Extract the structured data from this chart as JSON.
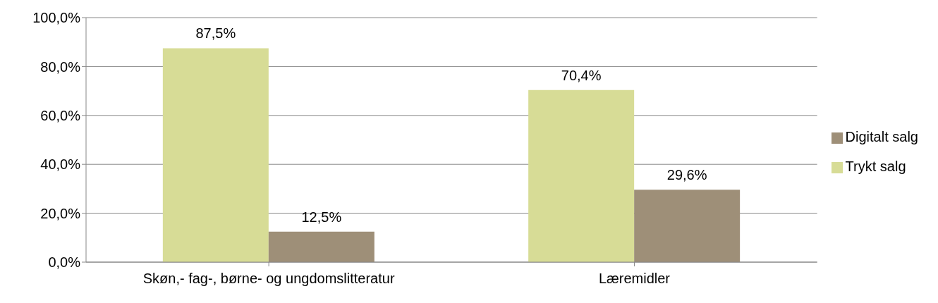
{
  "chart_data": {
    "type": "bar",
    "categories": [
      "Skøn,- fag-, børne- og ungdomslitteratur",
      "Læremidler"
    ],
    "series": [
      {
        "name": "Trykt salg",
        "color": "#d7dc96",
        "values": [
          87.5,
          70.4
        ],
        "value_labels": [
          "87,5%",
          "70,4%"
        ]
      },
      {
        "name": "Digitalt salg",
        "color": "#9e8f78",
        "values": [
          12.5,
          29.6
        ],
        "value_labels": [
          "12,5%",
          "29,6%"
        ]
      }
    ],
    "ylim": [
      0,
      100
    ],
    "yticks": [
      {
        "value": 0,
        "label": "0,0%"
      },
      {
        "value": 20,
        "label": "20,0%"
      },
      {
        "value": 40,
        "label": "40,0%"
      },
      {
        "value": 60,
        "label": "60,0%"
      },
      {
        "value": 80,
        "label": "80,0%"
      },
      {
        "value": 100,
        "label": "100,0%"
      }
    ],
    "grid": "y",
    "legend": "right"
  }
}
